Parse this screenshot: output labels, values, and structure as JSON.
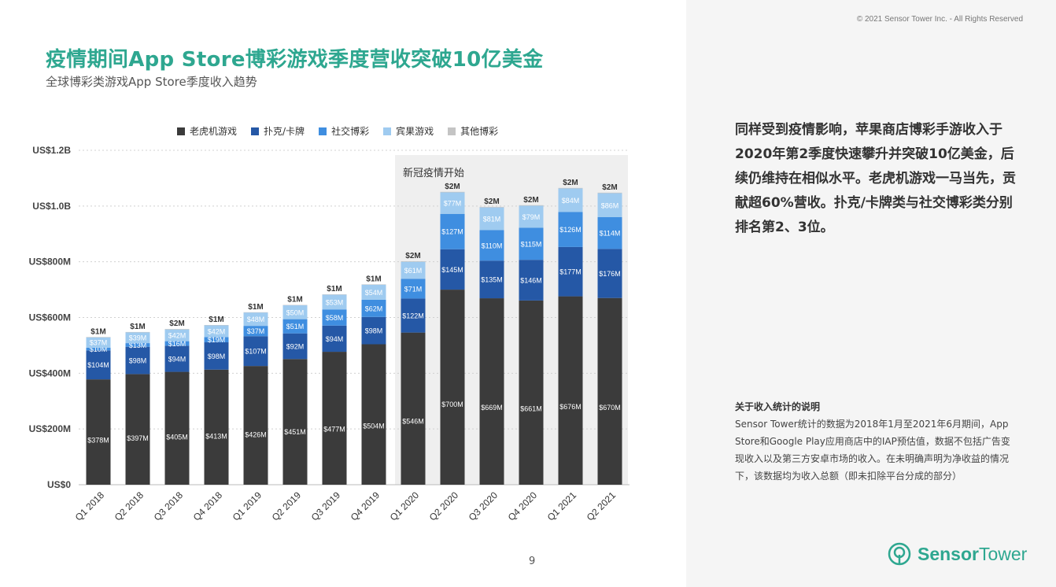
{
  "copyright": "© 2021 Sensor Tower Inc. - All Rights Reserved",
  "title": "疫情期间App Store博彩游戏季度营收突破10亿美金",
  "subtitle": "全球博彩类游戏App Store季度收入趋势",
  "description": "同样受到疫情影响，苹果商店博彩手游收入于2020年第2季度快速攀升并突破10亿美金，后续仍维持在相似水平。老虎机游戏一马当先，贡献超60%营收。扑克/卡牌类与社交博彩类分别排名第2、3位。",
  "note_title": "关于收入统计的说明",
  "note_body": "Sensor Tower统计的数据为2018年1月至2021年6月期间，App Store和Google Play应用商店中的IAP预估值，数据不包括广告变现收入以及第三方安卓市场的收入。在未明确声明为净收益的情况下，该数据均为收入总额（即未扣除平台分成的部分）",
  "page_number": "9",
  "logo": {
    "brand_part1": "Sensor",
    "brand_part2": "Tower",
    "icon": "sensor-tower-logo-icon"
  },
  "colors": {
    "accent": "#2ea790",
    "slot": "#3b3b3b",
    "poker": "#2558a6",
    "social": "#3f8ee0",
    "bingo": "#9fcbf0",
    "other": "#c4c4c4",
    "highlight": "#efefef"
  },
  "chart_data": {
    "type": "bar",
    "stacked": true,
    "categories": [
      "Q1 2018",
      "Q2 2018",
      "Q3 2018",
      "Q4 2018",
      "Q1 2019",
      "Q2 2019",
      "Q3 2019",
      "Q4 2019",
      "Q1 2020",
      "Q2 2020",
      "Q3 2020",
      "Q4 2020",
      "Q1 2021",
      "Q2 2021"
    ],
    "series": [
      {
        "name": "老虎机游戏",
        "values": [
          378,
          397,
          405,
          413,
          426,
          451,
          477,
          504,
          546,
          700,
          669,
          661,
          676,
          670
        ],
        "labels": [
          "$378M",
          "$397M",
          "$405M",
          "$413M",
          "$426M",
          "$451M",
          "$477M",
          "$504M",
          "$546M",
          "$700M",
          "$669M",
          "$661M",
          "$676M",
          "$670M"
        ]
      },
      {
        "name": "扑克/卡牌",
        "values": [
          104,
          98,
          94,
          98,
          107,
          92,
          94,
          98,
          122,
          145,
          135,
          146,
          177,
          176
        ],
        "labels": [
          "$104M",
          "$98M",
          "$94M",
          "$98M",
          "$107M",
          "$92M",
          "$94M",
          "$98M",
          "$122M",
          "$145M",
          "$135M",
          "$146M",
          "$177M",
          "$176M"
        ]
      },
      {
        "name": "社交博彩",
        "values": [
          10,
          13,
          16,
          19,
          37,
          51,
          58,
          62,
          71,
          127,
          110,
          115,
          126,
          114
        ],
        "labels": [
          "$10M",
          "$13M",
          "$16M",
          "$19M",
          "$37M",
          "$51M",
          "$58M",
          "$62M",
          "$71M",
          "$127M",
          "$110M",
          "$115M",
          "$126M",
          "$114M"
        ]
      },
      {
        "name": "宾果游戏",
        "values": [
          37,
          39,
          42,
          42,
          48,
          50,
          53,
          54,
          61,
          77,
          81,
          79,
          84,
          86
        ],
        "labels": [
          "$37M",
          "$39M",
          "$42M",
          "$42M",
          "$48M",
          "$50M",
          "$53M",
          "$54M",
          "$61M",
          "$77M",
          "$81M",
          "$79M",
          "$84M",
          "$86M"
        ]
      },
      {
        "name": "其他博彩",
        "values": [
          1,
          1,
          2,
          1,
          1,
          1,
          1,
          1,
          2,
          2,
          2,
          2,
          2,
          2
        ],
        "labels": [
          "$1M",
          "$1M",
          "$2M",
          "$1M",
          "$1M",
          "$1M",
          "$1M",
          "$1M",
          "$2M",
          "$2M",
          "$2M",
          "$2M",
          "$2M",
          "$2M"
        ]
      }
    ],
    "y_ticks": [
      0,
      200,
      400,
      600,
      800,
      1000,
      1200
    ],
    "y_tick_labels": [
      "US$0",
      "US$200M",
      "US$400M",
      "US$600M",
      "US$800M",
      "US$1.0B",
      "US$1.2B"
    ],
    "ylim": [
      0,
      1200
    ],
    "annotation": {
      "text": "新冠疫情开始",
      "from_category_index": 8
    },
    "legend_position": "top-center",
    "grid": true
  }
}
